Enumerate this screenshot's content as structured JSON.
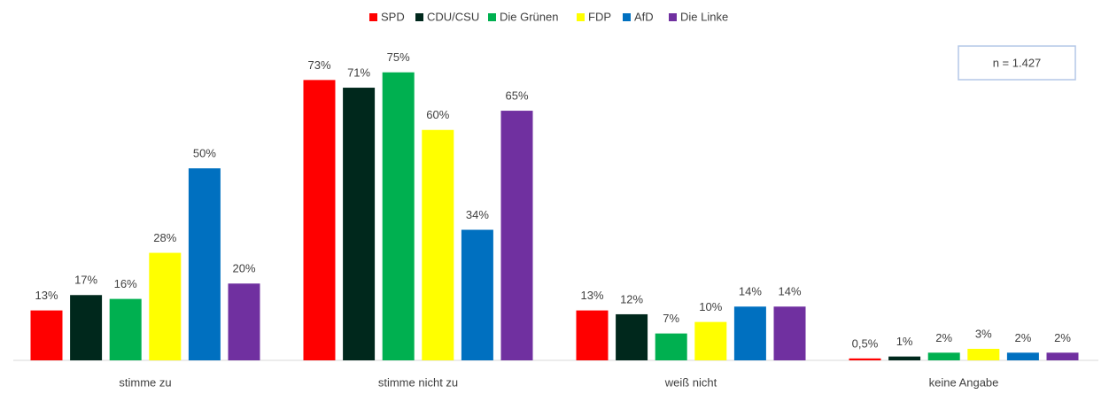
{
  "chart_data": {
    "type": "bar",
    "categories": [
      "stimme zu",
      "stimme nicht zu",
      "weiß nicht",
      "keine Angabe"
    ],
    "series": [
      {
        "name": "SPD",
        "color": "#ff0000",
        "values": [
          13,
          73,
          13,
          0.5
        ],
        "value_labels": [
          "13%",
          "73%",
          "13%",
          "0,5%"
        ]
      },
      {
        "name": "CDU/CSU",
        "color": "#00281c",
        "values": [
          17,
          71,
          12,
          1
        ],
        "value_labels": [
          "17%",
          "71%",
          "12%",
          "1%"
        ]
      },
      {
        "name": "Die Grünen",
        "color": "#00b050",
        "values": [
          16,
          75,
          7,
          2
        ],
        "value_labels": [
          "16%",
          "75%",
          "7%",
          "2%"
        ]
      },
      {
        "name": "FDP",
        "color": "#ffff00",
        "values": [
          28,
          60,
          10,
          3
        ],
        "value_labels": [
          "28%",
          "60%",
          "10%",
          "3%"
        ]
      },
      {
        "name": "AfD",
        "color": "#0070c0",
        "values": [
          50,
          34,
          14,
          2
        ],
        "value_labels": [
          "50%",
          "34%",
          "14%",
          "2%"
        ]
      },
      {
        "name": "Die Linke",
        "color": "#7030a0",
        "values": [
          20,
          65,
          14,
          2
        ],
        "value_labels": [
          "20%",
          "65%",
          "14%",
          "2%"
        ]
      }
    ],
    "annotation": "n = 1.427",
    "ylim": [
      0,
      80
    ],
    "legend": "top"
  }
}
